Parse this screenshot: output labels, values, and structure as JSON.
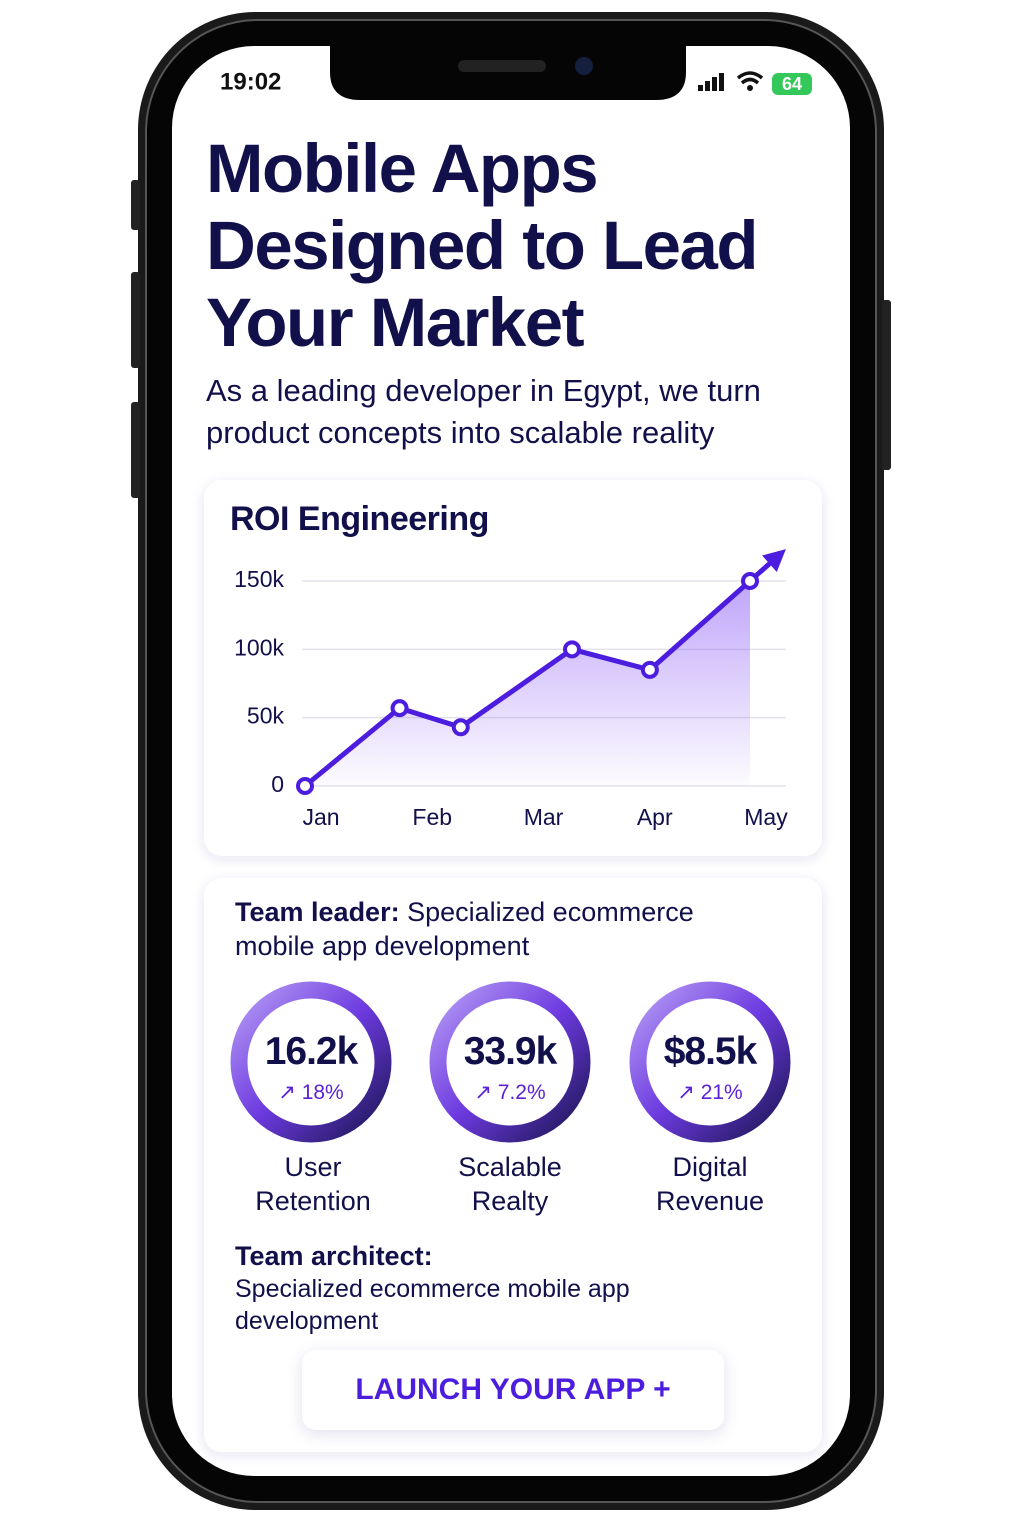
{
  "status": {
    "time": "19:02",
    "battery": "64"
  },
  "header": {
    "title": "Mobile Apps Designed to Lead Your Market",
    "subtitle": "As a leading developer in Egypt, we turn product concepts into scalable reality"
  },
  "chart_data": {
    "type": "line",
    "title": "ROI Engineering",
    "x": [
      0,
      0.85,
      1.4,
      2.4,
      3.1,
      4
    ],
    "xlim": [
      0,
      4
    ],
    "xticks": [
      {
        "value": 0,
        "label": "Jan"
      },
      {
        "value": 1,
        "label": "Feb"
      },
      {
        "value": 2,
        "label": "Mar"
      },
      {
        "value": 3,
        "label": "Apr"
      },
      {
        "value": 4,
        "label": "May"
      }
    ],
    "series": [
      {
        "name": "ROI",
        "color": "#4c1dde",
        "values": [
          0,
          57000,
          43000,
          100000,
          85000,
          150000
        ]
      }
    ],
    "ylim": [
      0,
      150000
    ],
    "yticks": [
      0,
      {
        "value": 50000,
        "label": "50k"
      },
      {
        "value": 100000,
        "label": "100k"
      },
      {
        "value": 150000,
        "label": "150k"
      }
    ],
    "grid": true
  },
  "team_leader": {
    "label": "Team leader:",
    "text": "Specialized ecommerce mobile app development"
  },
  "metrics": [
    {
      "value": "16.2k",
      "change": "18%",
      "label": "User Retention"
    },
    {
      "value": "33.9k",
      "change": "7.2%",
      "label": "Scalable Realty"
    },
    {
      "value": "$8.5k",
      "change": "21%",
      "label": "Digital Revenue"
    }
  ],
  "team_architect": {
    "label": "Team architect:",
    "text": "Specialized ecommerce mobile app development"
  },
  "button": {
    "label": "LAUNCH YOUR APP +"
  }
}
